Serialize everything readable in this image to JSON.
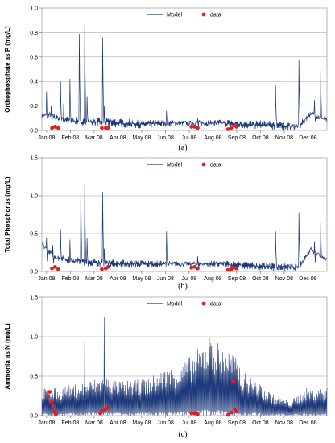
{
  "chart_data": [
    {
      "type": "line",
      "caption": "(a)",
      "ylabel": "Orthophosphate as P (mg/L)",
      "ylim": [
        0,
        1
      ],
      "yticks": [
        "0.0",
        "0.2",
        "0.4",
        "0.6",
        "0.8",
        "1.0"
      ],
      "xticks": [
        "Jan 08",
        "Feb 08",
        "Mar 08",
        "Apr 08",
        "May 08",
        "Jun 08",
        "Jul 08",
        "Aug 08",
        "Sep 08",
        "Oct 08",
        "Nov 08",
        "Dec 08"
      ],
      "grid": "horizontal",
      "legend": "top-center",
      "series": [
        {
          "name": "Model",
          "color": "#1f3a7a",
          "baseline": [
            [
              0,
              0.12
            ],
            [
              10,
              0.13
            ],
            [
              20,
              0.1
            ],
            [
              40,
              0.08
            ],
            [
              60,
              0.07
            ],
            [
              80,
              0.07
            ],
            [
              100,
              0.06
            ],
            [
              130,
              0.05
            ],
            [
              160,
              0.06
            ],
            [
              200,
              0.06
            ],
            [
              230,
              0.06
            ],
            [
              260,
              0.05
            ],
            [
              300,
              0.04
            ],
            [
              330,
              0.03
            ],
            [
              345,
              0.14
            ],
            [
              366,
              0.08
            ]
          ],
          "band": 0.04,
          "spikes": [
            [
              6,
              0.32
            ],
            [
              12,
              0.2
            ],
            [
              24,
              0.4
            ],
            [
              28,
              0.22
            ],
            [
              36,
              0.42
            ],
            [
              48,
              0.79
            ],
            [
              55,
              0.86
            ],
            [
              58,
              0.28
            ],
            [
              78,
              0.76
            ],
            [
              80,
              0.2
            ],
            [
              160,
              0.16
            ],
            [
              200,
              0.1
            ],
            [
              300,
              0.37
            ],
            [
              330,
              0.58
            ],
            [
              350,
              0.25
            ],
            [
              358,
              0.49
            ]
          ]
        },
        {
          "name": "data",
          "color": "#e02020",
          "points": [
            [
              13,
              0.02
            ],
            [
              17,
              0.03
            ],
            [
              21,
              0.02
            ],
            [
              77,
              0.02
            ],
            [
              82,
              0.02
            ],
            [
              85,
              0.02
            ],
            [
              192,
              0.03
            ],
            [
              196,
              0.03
            ],
            [
              200,
              0.02
            ],
            [
              239,
              0.01
            ],
            [
              243,
              0.02
            ],
            [
              247,
              0.04
            ],
            [
              250,
              0.03
            ]
          ]
        }
      ]
    },
    {
      "type": "line",
      "caption": "(b)",
      "ylabel": "Total Phosphorus (mg/L)",
      "ylim": [
        0,
        1.5
      ],
      "yticks": [
        "0.0",
        "0.5",
        "1.0",
        "1.5"
      ],
      "xticks": [
        "Jan 08",
        "Feb 08",
        "Mar 08",
        "Apr 08",
        "May 08",
        "Jun 08",
        "Jul 08",
        "Aug 08",
        "Sep 08",
        "Oct 08",
        "Nov 08",
        "Dec 08"
      ],
      "grid": "horizontal",
      "legend": "top-center",
      "series": [
        {
          "name": "Model",
          "color": "#1f3a7a",
          "baseline": [
            [
              0,
              0.35
            ],
            [
              10,
              0.25
            ],
            [
              20,
              0.18
            ],
            [
              40,
              0.15
            ],
            [
              60,
              0.12
            ],
            [
              80,
              0.12
            ],
            [
              100,
              0.1
            ],
            [
              130,
              0.1
            ],
            [
              160,
              0.1
            ],
            [
              200,
              0.1
            ],
            [
              230,
              0.1
            ],
            [
              260,
              0.08
            ],
            [
              300,
              0.06
            ],
            [
              330,
              0.05
            ],
            [
              345,
              0.3
            ],
            [
              366,
              0.15
            ]
          ],
          "band": 0.06,
          "spikes": [
            [
              6,
              0.45
            ],
            [
              14,
              0.35
            ],
            [
              24,
              0.56
            ],
            [
              36,
              0.42
            ],
            [
              50,
              1.1
            ],
            [
              55,
              1.15
            ],
            [
              58,
              0.44
            ],
            [
              78,
              1.05
            ],
            [
              80,
              0.3
            ],
            [
              160,
              0.53
            ],
            [
              200,
              0.2
            ],
            [
              300,
              0.53
            ],
            [
              330,
              0.78
            ],
            [
              350,
              0.4
            ],
            [
              358,
              0.65
            ]
          ]
        },
        {
          "name": "data",
          "color": "#e02020",
          "points": [
            [
              13,
              0.04
            ],
            [
              17,
              0.06
            ],
            [
              21,
              0.03
            ],
            [
              77,
              0.03
            ],
            [
              82,
              0.04
            ],
            [
              85,
              0.06
            ],
            [
              192,
              0.05
            ],
            [
              196,
              0.06
            ],
            [
              200,
              0.04
            ],
            [
              239,
              0.02
            ],
            [
              243,
              0.03
            ],
            [
              247,
              0.05
            ],
            [
              250,
              0.04
            ]
          ]
        }
      ]
    },
    {
      "type": "line",
      "caption": "(c)",
      "ylabel": "Ammonia as N (mg/L)",
      "ylim": [
        0,
        1.5
      ],
      "yticks": [
        "0.0",
        "0.5",
        "1.0",
        "1.5"
      ],
      "xticks": [
        "Jan 08",
        "Feb 08",
        "Mar 08",
        "Apr 08",
        "May 08",
        "Jun 08",
        "Jul 08",
        "Aug 08",
        "Sep 08",
        "Oct 08",
        "Nov 08",
        "Dec 08"
      ],
      "grid": "horizontal",
      "legend": "top-center",
      "series": [
        {
          "name": "Model",
          "color": "#1f3a7a",
          "envelope": [
            [
              0,
              0.35
            ],
            [
              20,
              0.35
            ],
            [
              40,
              0.4
            ],
            [
              60,
              0.45
            ],
            [
              80,
              0.5
            ],
            [
              100,
              0.45
            ],
            [
              120,
              0.45
            ],
            [
              140,
              0.5
            ],
            [
              160,
              0.6
            ],
            [
              180,
              0.65
            ],
            [
              195,
              0.8
            ],
            [
              210,
              0.95
            ],
            [
              225,
              0.95
            ],
            [
              245,
              0.8
            ],
            [
              260,
              0.55
            ],
            [
              280,
              0.4
            ],
            [
              300,
              0.25
            ],
            [
              320,
              0.2
            ],
            [
              340,
              0.35
            ],
            [
              366,
              0.35
            ]
          ],
          "spikes": [
            [
              55,
              0.95
            ],
            [
              80,
              1.25
            ],
            [
              215,
              1.0
            ]
          ]
        },
        {
          "name": "data",
          "color": "#e02020",
          "points": [
            [
              8,
              0.25
            ],
            [
              10,
              0.3
            ],
            [
              12,
              0.18
            ],
            [
              14,
              0.12
            ],
            [
              16,
              0.05
            ],
            [
              18,
              0.02
            ],
            [
              75,
              0.03
            ],
            [
              78,
              0.06
            ],
            [
              81,
              0.08
            ],
            [
              84,
              0.1
            ],
            [
              192,
              0.03
            ],
            [
              196,
              0.03
            ],
            [
              200,
              0.02
            ],
            [
              239,
              0.01
            ],
            [
              243,
              0.04
            ],
            [
              246,
              0.43
            ],
            [
              248,
              0.08
            ],
            [
              250,
              0.05
            ]
          ]
        }
      ]
    }
  ]
}
